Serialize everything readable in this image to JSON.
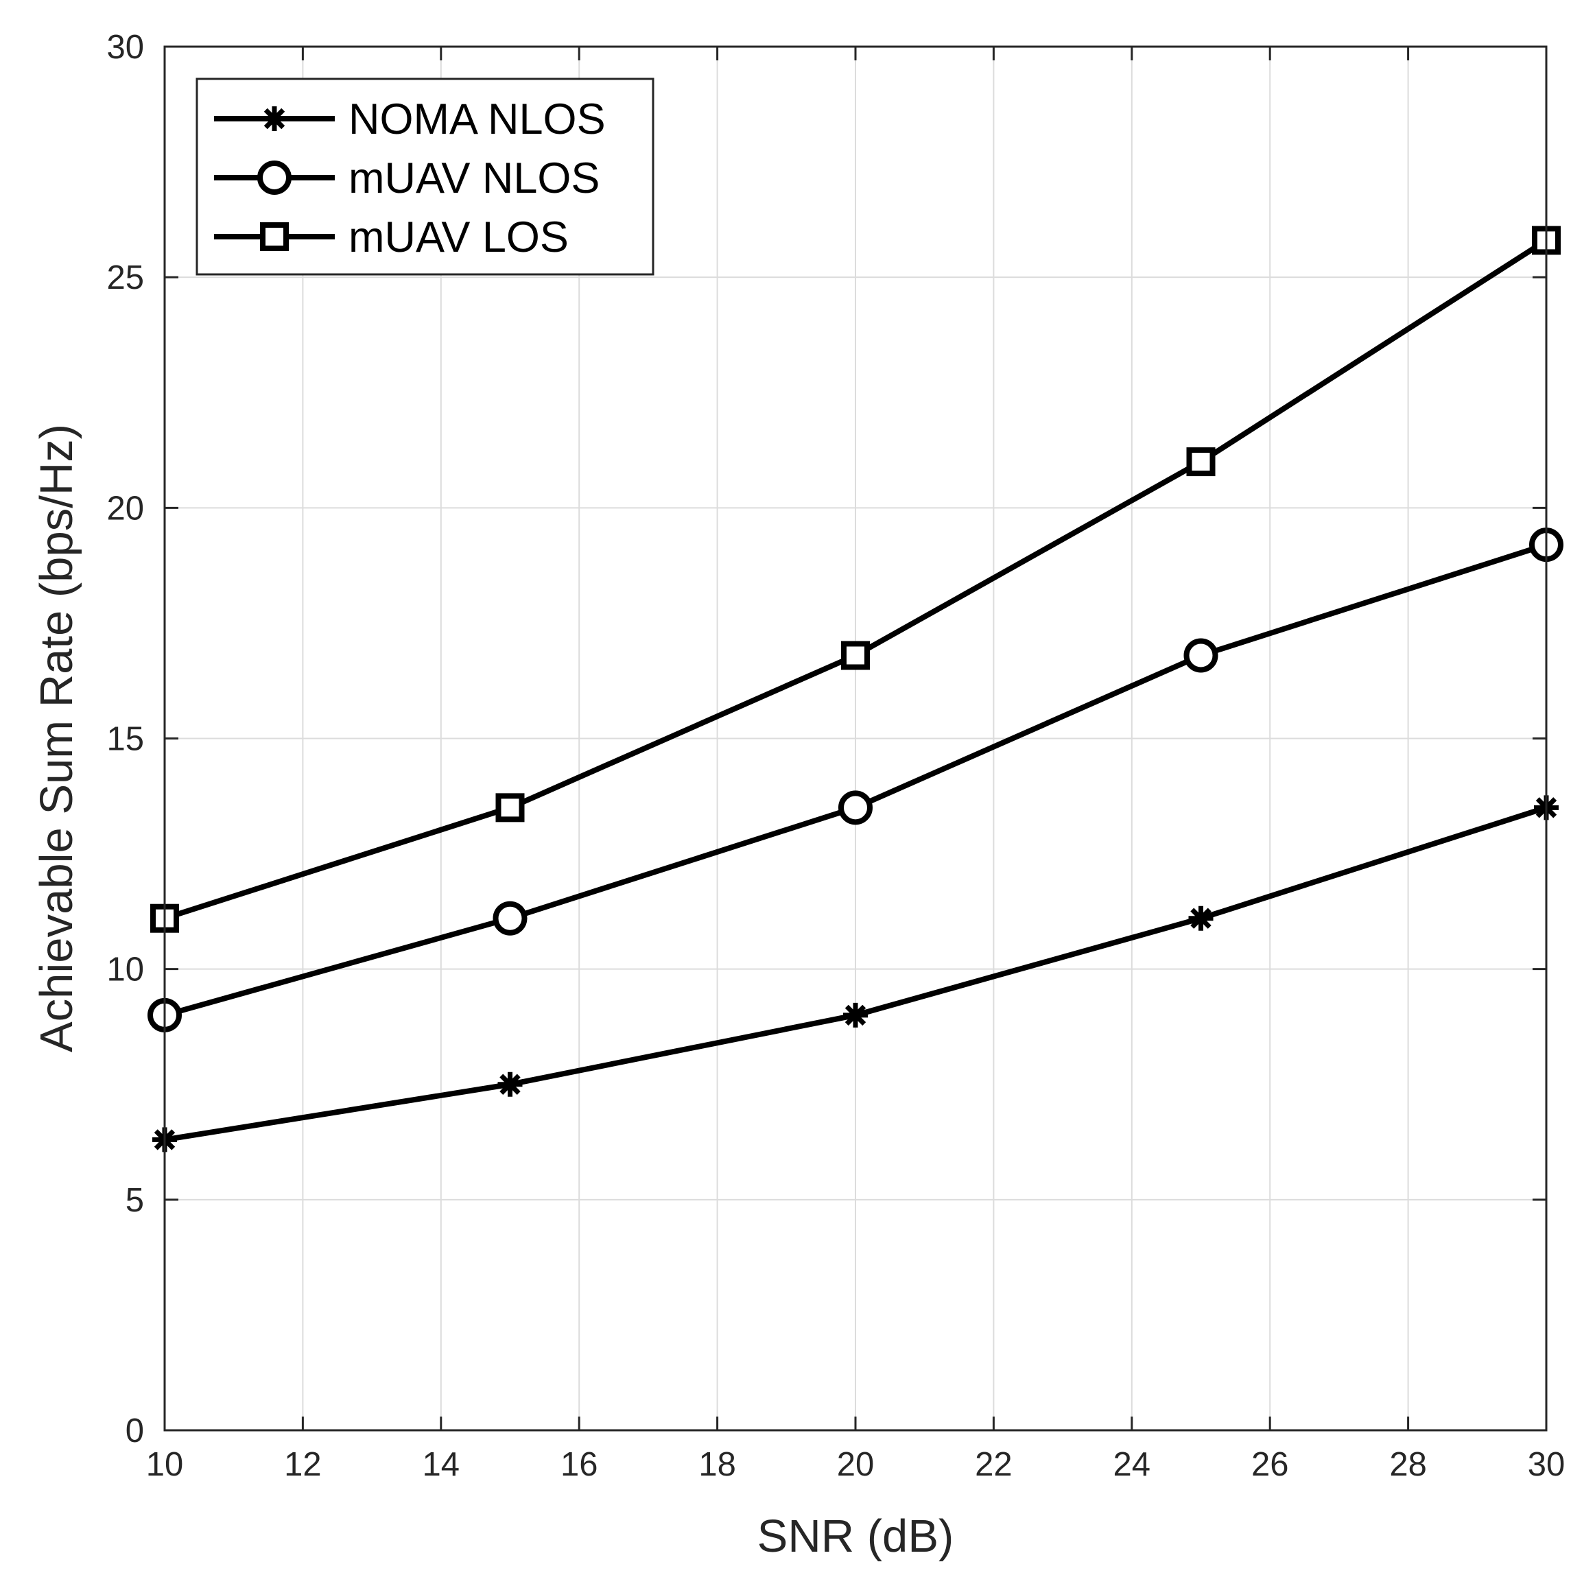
{
  "chart_data": {
    "type": "line",
    "title": "",
    "xlabel": "SNR (dB)",
    "ylabel": "Achievable Sum Rate (bps/Hz)",
    "xlim": [
      10,
      30
    ],
    "ylim": [
      0,
      30
    ],
    "xticks": [
      10,
      12,
      14,
      16,
      18,
      20,
      22,
      24,
      26,
      28,
      30
    ],
    "yticks": [
      0,
      5,
      10,
      15,
      20,
      25,
      30
    ],
    "grid": true,
    "legend_position": "top-left",
    "x": [
      10,
      15,
      20,
      25,
      30
    ],
    "series": [
      {
        "name": "NOMA NLOS",
        "marker": "asterisk",
        "values": [
          6.3,
          7.5,
          9.0,
          11.1,
          13.5
        ]
      },
      {
        "name": "mUAV NLOS",
        "marker": "circle",
        "values": [
          9.0,
          11.1,
          13.5,
          16.8,
          19.2
        ]
      },
      {
        "name": "mUAV LOS",
        "marker": "square",
        "values": [
          11.1,
          13.5,
          16.8,
          21.0,
          25.8
        ]
      }
    ],
    "colors": {
      "line": "#000000",
      "axis": "#262626",
      "grid": "#dcdcdc"
    }
  }
}
